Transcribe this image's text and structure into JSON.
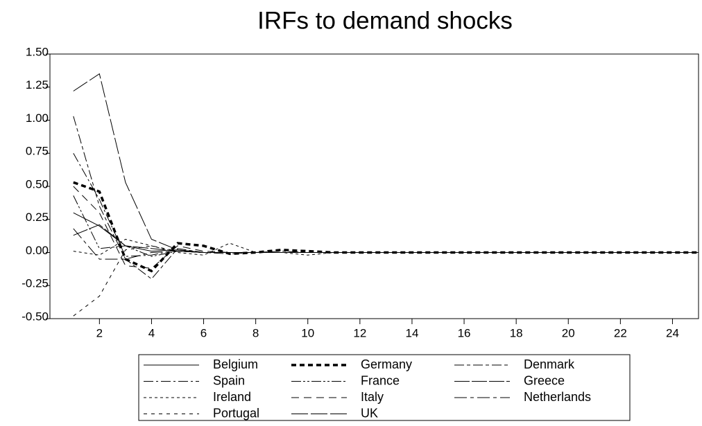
{
  "chart_data": {
    "type": "line",
    "title": "IRFs to demand shocks",
    "x": [
      1,
      2,
      3,
      4,
      5,
      6,
      7,
      8,
      9,
      10,
      11,
      12,
      13,
      14,
      15,
      16,
      17,
      18,
      19,
      20,
      21,
      22,
      23,
      24,
      25
    ],
    "xlim": [
      0.1,
      25
    ],
    "xticks": [
      2,
      4,
      6,
      8,
      10,
      12,
      14,
      16,
      18,
      20,
      22,
      24
    ],
    "ylim": [
      -0.5,
      1.5
    ],
    "yticks": [
      {
        "value": -0.5,
        "label": "-0.50"
      },
      {
        "value": -0.25,
        "label": "-0.25"
      },
      {
        "value": 0,
        "label": "0.00"
      },
      {
        "value": 0.25,
        "label": "0.25"
      },
      {
        "value": 0.5,
        "label": "0.50"
      },
      {
        "value": 0.75,
        "label": "0.75"
      },
      {
        "value": 1,
        "label": "1.00"
      },
      {
        "value": 1.25,
        "label": "1.25"
      },
      {
        "value": 1.5,
        "label": "1.50"
      }
    ],
    "series": [
      {
        "name": "Belgium",
        "color": "#000000",
        "width": 1,
        "dash": "none",
        "values": [
          0.3,
          0.2,
          0.05,
          0.01,
          0.02,
          0.0,
          0.0,
          0.0,
          0.0,
          0.0,
          0,
          0,
          0,
          0,
          0,
          0,
          0,
          0,
          0,
          0,
          0,
          0,
          0,
          0,
          0
        ]
      },
      {
        "name": "Germany",
        "color": "#000000",
        "width": 3.5,
        "dash": "7,5",
        "values": [
          0.53,
          0.46,
          -0.05,
          -0.14,
          0.07,
          0.05,
          -0.01,
          0.0,
          0.02,
          0.01,
          0,
          0,
          0,
          0,
          0,
          0,
          0,
          0,
          0,
          0,
          0,
          0,
          0,
          0,
          0
        ]
      },
      {
        "name": "Denmark",
        "color": "#000000",
        "width": 1,
        "dash": "14,4,5,4",
        "values": [
          1.03,
          0.35,
          -0.05,
          -0.2,
          0.03,
          0.0,
          -0.01,
          0.0,
          0.01,
          0.0,
          0,
          0,
          0,
          0,
          0,
          0,
          0,
          0,
          0,
          0,
          0,
          0,
          0,
          0,
          0
        ]
      },
      {
        "name": "Spain",
        "color": "#000000",
        "width": 1,
        "dash": "14,4,3,4",
        "values": [
          0.75,
          0.4,
          -0.03,
          -0.02,
          0.02,
          0.0,
          0.0,
          0.0,
          0.0,
          0.0,
          0,
          0,
          0,
          0,
          0,
          0,
          0,
          0,
          0,
          0,
          0,
          0,
          0,
          0,
          0
        ]
      },
      {
        "name": "France",
        "color": "#000000",
        "width": 1,
        "dash": "14,3,3,3,3,3",
        "values": [
          0.43,
          0.03,
          0.05,
          -0.03,
          0.01,
          0.0,
          0.0,
          0.0,
          0.0,
          0.0,
          0,
          0,
          0,
          0,
          0,
          0,
          0,
          0,
          0,
          0,
          0,
          0,
          0,
          0,
          0
        ]
      },
      {
        "name": "Greece",
        "color": "#000000",
        "width": 1,
        "dash": "22,3",
        "values": [
          0.13,
          0.21,
          0.05,
          0.03,
          0.01,
          0.0,
          0.0,
          0.0,
          0.0,
          0.0,
          0,
          0,
          0,
          0,
          0,
          0,
          0,
          0,
          0,
          0,
          0,
          0,
          0,
          0,
          0
        ]
      },
      {
        "name": "Ireland",
        "color": "#000000",
        "width": 1,
        "dash": "4,4",
        "values": [
          0.01,
          -0.02,
          0.1,
          0.05,
          0.0,
          -0.02,
          0.07,
          0.0,
          0.0,
          -0.02,
          0,
          0,
          0,
          0,
          0,
          0,
          0,
          0,
          0,
          0,
          0,
          0,
          0,
          0,
          0
        ]
      },
      {
        "name": "Italy",
        "color": "#000000",
        "width": 1,
        "dash": "11,7",
        "values": [
          0.5,
          0.3,
          -0.1,
          -0.12,
          0.05,
          0.01,
          0.0,
          0.0,
          0.0,
          0.0,
          0,
          0,
          0,
          0,
          0,
          0,
          0,
          0,
          0,
          0,
          0,
          0,
          0,
          0,
          0
        ]
      },
      {
        "name": "Netherlands",
        "color": "#000000",
        "width": 1,
        "dash": "18,5,5,5",
        "values": [
          0.18,
          -0.05,
          -0.05,
          0.0,
          0.01,
          0.0,
          0.0,
          0.0,
          0.0,
          0.0,
          0,
          0,
          0,
          0,
          0,
          0,
          0,
          0,
          0,
          0,
          0,
          0,
          0,
          0,
          0
        ]
      },
      {
        "name": "Portugal",
        "color": "#000000",
        "width": 1,
        "dash": "5,6",
        "values": [
          -0.48,
          -0.33,
          0.02,
          0.05,
          0.01,
          0.0,
          0.0,
          0.0,
          0.0,
          0.0,
          0,
          0,
          0,
          0,
          0,
          0,
          0,
          0,
          0,
          0,
          0,
          0,
          0,
          0,
          0
        ]
      },
      {
        "name": "UK",
        "color": "#000000",
        "width": 1,
        "dash": "24,4",
        "values": [
          1.22,
          1.35,
          0.53,
          0.1,
          0.02,
          0.0,
          0.0,
          0.0,
          0.0,
          0.0,
          0,
          0,
          0,
          0,
          0,
          0,
          0,
          0,
          0,
          0,
          0,
          0,
          0,
          0,
          0
        ]
      }
    ]
  }
}
